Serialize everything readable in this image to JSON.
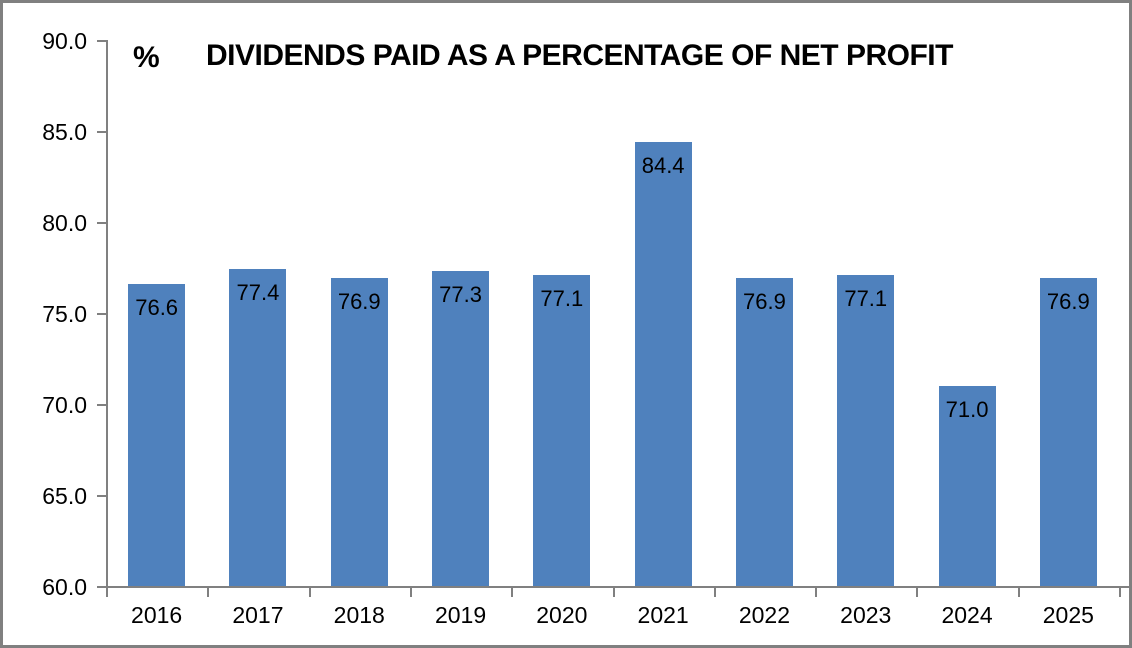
{
  "frame": {
    "border_color": "#808080",
    "background_color": "#ffffff"
  },
  "header": {
    "unit_label": "%",
    "title": "DIVIDENDS PAID AS A PERCENTAGE OF NET PROFIT"
  },
  "chart_data": {
    "type": "bar",
    "title": "DIVIDENDS PAID AS A PERCENTAGE OF NET PROFIT",
    "unit_label": "%",
    "categories": [
      "2016",
      "2017",
      "2018",
      "2019",
      "2020",
      "2021",
      "2022",
      "2023",
      "2024",
      "2025"
    ],
    "values": [
      76.6,
      77.4,
      76.9,
      77.3,
      77.1,
      84.4,
      76.9,
      77.1,
      71.0,
      76.9
    ],
    "data_labels": [
      "76.6",
      "77.4",
      "76.9",
      "77.3",
      "77.1",
      "84.4",
      "76.9",
      "77.1",
      "71.0",
      "76.9"
    ],
    "data_label_position": "inside-end",
    "xlabel": "",
    "ylabel": "",
    "ylim": [
      60.0,
      90.0
    ],
    "ytick_step": 5.0,
    "ytick_labels": [
      "60.0",
      "65.0",
      "70.0",
      "75.0",
      "80.0",
      "85.0",
      "90.0"
    ],
    "grid": false,
    "legend": null,
    "bar_color": "#4f81bd",
    "axis_color": "#808080",
    "text_color": "#000000"
  }
}
